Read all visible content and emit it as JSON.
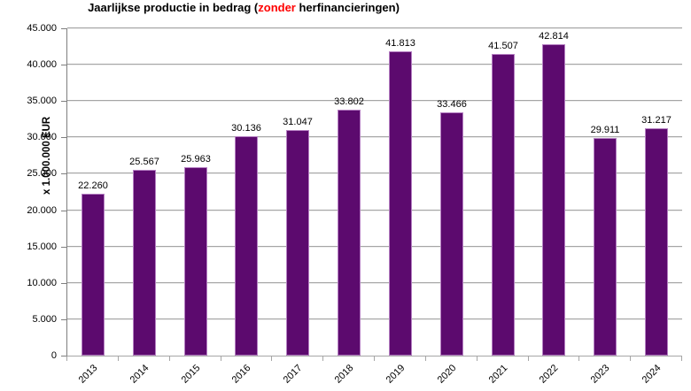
{
  "title": {
    "part1": "Jaarlijkse productie in bedrag (",
    "highlight": "zonder",
    "part2": " herfinancieringen)"
  },
  "colors": {
    "bar_fill": "#5c0a6e",
    "bar_border": "#b57fc2",
    "gridline": "#a6a6a6",
    "y_axis_line": "#7f7f7f",
    "x_axis_line": "#a6a6a6",
    "title_highlight": "#ff0000",
    "text": "#000000"
  },
  "chart_data": {
    "type": "bar",
    "title": "Jaarlijkse productie in bedrag (zonder herfinancieringen)",
    "title_highlight_word": "zonder",
    "xlabel": "",
    "ylabel": "x 1.000.000 EUR",
    "categories": [
      "2013",
      "2014",
      "2015",
      "2016",
      "2017",
      "2018",
      "2019",
      "2020",
      "2021",
      "2022",
      "2023",
      "2024"
    ],
    "values": [
      22260,
      25567,
      25963,
      30136,
      31047,
      33802,
      41813,
      33466,
      41507,
      42814,
      29911,
      31217
    ],
    "value_labels": [
      "22.260",
      "25.567",
      "25.963",
      "30.136",
      "31.047",
      "33.802",
      "41.813",
      "33.466",
      "41.507",
      "42.814",
      "29.911",
      "31.217"
    ],
    "ylim": [
      0,
      45000
    ],
    "ytick_step": 5000,
    "ytick_labels": [
      "0",
      "5.000",
      "10.000",
      "15.000",
      "20.000",
      "25.000",
      "30.000",
      "35.000",
      "40.000",
      "45.000"
    ],
    "grid": true,
    "legend": false,
    "bar_fill_ratio": 0.45
  }
}
